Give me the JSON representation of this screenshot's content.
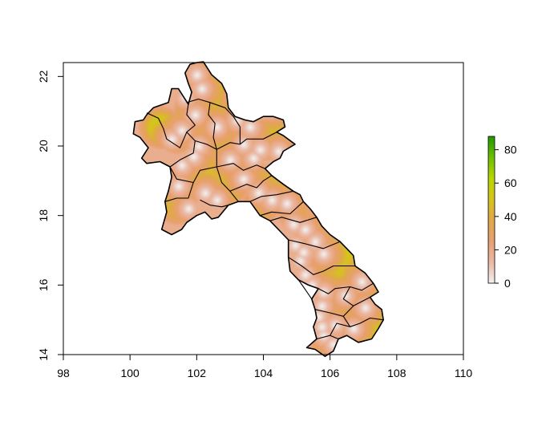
{
  "map": {
    "region": "Laos",
    "x_axis": {
      "ticks": [
        98,
        100,
        102,
        104,
        106,
        108,
        110
      ],
      "range": [
        98,
        110
      ]
    },
    "y_axis": {
      "ticks": [
        14,
        16,
        18,
        20,
        22
      ],
      "range": [
        14,
        22.4
      ]
    },
    "legend": {
      "ticks": [
        0,
        20,
        40,
        60,
        80
      ],
      "range": [
        0,
        88
      ],
      "colors": [
        "#f2f2f2",
        "#eab8a4",
        "#e8a070",
        "#e0a84a",
        "#d6c41c",
        "#b8d600",
        "#6cc000",
        "#1e9a00"
      ]
    },
    "country_border": [
      [
        102.0,
        22.4
      ],
      [
        102.2,
        22.42
      ],
      [
        102.45,
        22.05
      ],
      [
        102.75,
        21.8
      ],
      [
        102.9,
        21.5
      ],
      [
        102.95,
        21.1
      ],
      [
        103.15,
        20.85
      ],
      [
        103.45,
        20.75
      ],
      [
        103.7,
        20.7
      ],
      [
        104.0,
        20.85
      ],
      [
        104.3,
        20.85
      ],
      [
        104.6,
        20.75
      ],
      [
        104.65,
        20.55
      ],
      [
        104.4,
        20.4
      ],
      [
        104.6,
        20.3
      ],
      [
        104.95,
        20.05
      ],
      [
        104.6,
        19.85
      ],
      [
        104.5,
        19.65
      ],
      [
        104.3,
        19.55
      ],
      [
        104.05,
        19.35
      ],
      [
        104.25,
        19.15
      ],
      [
        104.6,
        18.9
      ],
      [
        104.9,
        18.7
      ],
      [
        105.1,
        18.6
      ],
      [
        105.2,
        18.4
      ],
      [
        105.4,
        18.2
      ],
      [
        105.6,
        17.95
      ],
      [
        105.75,
        17.7
      ],
      [
        106.0,
        17.45
      ],
      [
        106.3,
        17.25
      ],
      [
        106.5,
        17.05
      ],
      [
        106.7,
        16.85
      ],
      [
        106.75,
        16.55
      ],
      [
        107.05,
        16.35
      ],
      [
        107.3,
        16.05
      ],
      [
        107.45,
        15.8
      ],
      [
        107.2,
        15.65
      ],
      [
        107.35,
        15.45
      ],
      [
        107.55,
        15.3
      ],
      [
        107.6,
        15.0
      ],
      [
        107.45,
        14.75
      ],
      [
        107.25,
        14.45
      ],
      [
        106.85,
        14.35
      ],
      [
        106.5,
        14.55
      ],
      [
        106.25,
        14.45
      ],
      [
        106.1,
        14.1
      ],
      [
        105.85,
        13.95
      ],
      [
        105.55,
        14.15
      ],
      [
        105.3,
        14.2
      ],
      [
        105.6,
        14.45
      ],
      [
        105.5,
        14.8
      ],
      [
        105.6,
        15.05
      ],
      [
        105.55,
        15.3
      ],
      [
        105.45,
        15.6
      ],
      [
        105.65,
        15.9
      ],
      [
        105.35,
        16.0
      ],
      [
        105.05,
        16.15
      ],
      [
        104.8,
        16.4
      ],
      [
        104.75,
        16.8
      ],
      [
        104.75,
        17.3
      ],
      [
        104.45,
        17.6
      ],
      [
        104.2,
        17.85
      ],
      [
        103.9,
        18.0
      ],
      [
        103.6,
        18.4
      ],
      [
        103.25,
        18.4
      ],
      [
        102.95,
        18.3
      ],
      [
        102.65,
        17.95
      ],
      [
        102.45,
        17.9
      ],
      [
        102.25,
        18.1
      ],
      [
        102.0,
        18.0
      ],
      [
        101.7,
        17.8
      ],
      [
        101.55,
        17.6
      ],
      [
        101.25,
        17.45
      ],
      [
        100.95,
        17.6
      ],
      [
        101.1,
        18.1
      ],
      [
        101.05,
        18.4
      ],
      [
        101.15,
        18.7
      ],
      [
        101.25,
        19.1
      ],
      [
        101.2,
        19.4
      ],
      [
        100.9,
        19.55
      ],
      [
        100.5,
        19.5
      ],
      [
        100.35,
        19.65
      ],
      [
        100.55,
        19.95
      ],
      [
        100.3,
        20.25
      ],
      [
        100.1,
        20.35
      ],
      [
        100.15,
        20.7
      ],
      [
        100.4,
        20.75
      ],
      [
        100.5,
        20.9
      ],
      [
        100.7,
        21.1
      ],
      [
        101.15,
        21.25
      ],
      [
        101.2,
        21.45
      ],
      [
        101.25,
        21.65
      ],
      [
        101.45,
        21.65
      ],
      [
        101.75,
        21.2
      ],
      [
        101.85,
        21.55
      ],
      [
        101.75,
        21.8
      ],
      [
        101.65,
        22.1
      ],
      [
        101.8,
        22.35
      ],
      [
        102.0,
        22.4
      ]
    ],
    "province_borders": [
      [
        [
          101.7,
          21.25
        ],
        [
          102.05,
          21.35
        ],
        [
          102.4,
          21.25
        ],
        [
          102.85,
          21.1
        ]
      ],
      [
        [
          101.75,
          21.2
        ],
        [
          101.7,
          20.9
        ],
        [
          101.95,
          20.6
        ],
        [
          101.7,
          20.4
        ],
        [
          101.95,
          20.15
        ],
        [
          102.3,
          20.05
        ],
        [
          102.6,
          19.9
        ]
      ],
      [
        [
          102.4,
          21.25
        ],
        [
          102.35,
          20.9
        ],
        [
          102.55,
          20.65
        ],
        [
          102.5,
          20.25
        ],
        [
          102.6,
          19.9
        ],
        [
          103.0,
          20.1
        ],
        [
          103.3,
          20.05
        ],
        [
          103.5,
          20.2
        ],
        [
          104.0,
          20.2
        ],
        [
          104.4,
          20.4
        ]
      ],
      [
        [
          102.85,
          21.1
        ],
        [
          103.1,
          20.85
        ],
        [
          103.3,
          20.55
        ],
        [
          103.3,
          20.05
        ]
      ],
      [
        [
          100.5,
          20.95
        ],
        [
          100.85,
          20.8
        ],
        [
          101.0,
          20.5
        ],
        [
          101.1,
          20.2
        ],
        [
          101.5,
          19.95
        ],
        [
          101.7,
          20.4
        ]
      ],
      [
        [
          101.2,
          19.4
        ],
        [
          101.5,
          19.6
        ],
        [
          101.9,
          19.8
        ],
        [
          101.95,
          20.15
        ]
      ],
      [
        [
          101.2,
          19.4
        ],
        [
          101.4,
          19.05
        ],
        [
          101.9,
          18.95
        ],
        [
          102.1,
          19.3
        ],
        [
          102.6,
          19.4
        ],
        [
          102.6,
          19.9
        ]
      ],
      [
        [
          101.05,
          18.4
        ],
        [
          101.4,
          18.5
        ],
        [
          101.75,
          18.5
        ],
        [
          101.9,
          18.95
        ]
      ],
      [
        [
          102.6,
          19.4
        ],
        [
          102.75,
          18.95
        ],
        [
          103.0,
          18.7
        ],
        [
          103.25,
          18.4
        ]
      ],
      [
        [
          102.1,
          18.45
        ],
        [
          102.4,
          18.3
        ],
        [
          102.75,
          18.25
        ],
        [
          102.95,
          18.3
        ]
      ],
      [
        [
          102.6,
          19.4
        ],
        [
          103.1,
          19.5
        ],
        [
          103.4,
          19.3
        ],
        [
          103.8,
          19.45
        ],
        [
          104.05,
          19.35
        ]
      ],
      [
        [
          103.0,
          18.7
        ],
        [
          103.5,
          18.9
        ],
        [
          103.8,
          18.8
        ],
        [
          104.0,
          19.0
        ],
        [
          104.25,
          19.15
        ]
      ],
      [
        [
          103.6,
          18.4
        ],
        [
          103.95,
          18.55
        ],
        [
          104.4,
          18.6
        ],
        [
          104.9,
          18.7
        ]
      ],
      [
        [
          103.9,
          18.0
        ],
        [
          104.25,
          18.1
        ],
        [
          104.8,
          18.05
        ],
        [
          105.2,
          18.4
        ]
      ],
      [
        [
          104.2,
          17.85
        ],
        [
          104.55,
          17.95
        ],
        [
          105.1,
          17.8
        ],
        [
          105.6,
          17.95
        ]
      ],
      [
        [
          104.75,
          17.3
        ],
        [
          105.2,
          17.2
        ],
        [
          105.8,
          17.05
        ],
        [
          106.3,
          17.25
        ]
      ],
      [
        [
          104.75,
          16.8
        ],
        [
          105.15,
          16.55
        ],
        [
          105.5,
          16.3
        ],
        [
          105.8,
          16.4
        ],
        [
          106.1,
          16.55
        ],
        [
          106.75,
          16.55
        ]
      ],
      [
        [
          105.05,
          16.15
        ],
        [
          105.2,
          15.95
        ],
        [
          105.45,
          15.6
        ]
      ],
      [
        [
          105.65,
          15.9
        ],
        [
          105.95,
          15.75
        ],
        [
          106.15,
          15.9
        ],
        [
          106.6,
          15.95
        ],
        [
          106.95,
          15.85
        ],
        [
          107.3,
          16.05
        ]
      ],
      [
        [
          106.6,
          15.95
        ],
        [
          106.4,
          15.6
        ],
        [
          106.7,
          15.4
        ],
        [
          107.2,
          15.65
        ]
      ],
      [
        [
          105.55,
          15.3
        ],
        [
          106.0,
          15.2
        ],
        [
          106.4,
          15.1
        ],
        [
          106.7,
          15.4
        ]
      ],
      [
        [
          106.4,
          15.1
        ],
        [
          106.6,
          14.8
        ],
        [
          106.9,
          14.9
        ],
        [
          107.2,
          15.05
        ],
        [
          107.6,
          15.0
        ]
      ],
      [
        [
          105.6,
          14.45
        ],
        [
          106.0,
          14.55
        ],
        [
          106.25,
          14.45
        ]
      ],
      [
        [
          106.0,
          14.55
        ],
        [
          106.2,
          14.9
        ],
        [
          106.6,
          14.8
        ]
      ]
    ],
    "hotspots": [
      [
        102.35,
        21.9,
        72
      ],
      [
        102.3,
        21.35,
        60
      ],
      [
        101.95,
        21.0,
        70
      ],
      [
        100.9,
        20.55,
        66
      ],
      [
        101.4,
        20.25,
        40
      ],
      [
        102.2,
        20.75,
        55
      ],
      [
        102.95,
        20.75,
        66
      ],
      [
        103.45,
        20.4,
        48
      ],
      [
        104.05,
        20.2,
        62
      ],
      [
        104.45,
        20.3,
        48
      ],
      [
        102.7,
        20.1,
        42
      ],
      [
        102.4,
        19.2,
        66
      ],
      [
        102.85,
        18.95,
        86
      ],
      [
        101.85,
        19.05,
        70
      ],
      [
        101.4,
        18.3,
        52
      ],
      [
        103.2,
        19.3,
        42
      ],
      [
        103.8,
        19.1,
        38
      ],
      [
        104.1,
        18.9,
        50
      ],
      [
        104.45,
        18.8,
        44
      ],
      [
        104.7,
        18.5,
        50
      ],
      [
        104.95,
        18.05,
        42
      ],
      [
        105.5,
        17.55,
        50
      ],
      [
        105.8,
        17.15,
        44
      ],
      [
        106.1,
        16.8,
        46
      ],
      [
        106.35,
        16.85,
        58
      ],
      [
        106.7,
        16.65,
        40
      ],
      [
        105.7,
        16.2,
        66
      ],
      [
        106.0,
        16.25,
        80
      ],
      [
        106.55,
        16.15,
        42
      ],
      [
        107.1,
        15.9,
        44
      ],
      [
        106.85,
        15.45,
        44
      ],
      [
        106.3,
        15.4,
        40
      ],
      [
        106.95,
        14.85,
        84
      ],
      [
        107.35,
        14.8,
        70
      ],
      [
        105.85,
        14.35,
        38
      ],
      [
        104.5,
        17.0,
        24
      ],
      [
        103.9,
        18.3,
        52
      ],
      [
        102.4,
        21.7,
        58
      ],
      [
        101.55,
        20.6,
        44
      ],
      [
        103.6,
        19.9,
        40
      ]
    ],
    "coldspots": [
      [
        102.0,
        22.05
      ],
      [
        102.15,
        21.65
      ],
      [
        101.65,
        21.4
      ],
      [
        101.95,
        20.9
      ],
      [
        101.55,
        20.45
      ],
      [
        101.25,
        20.2
      ],
      [
        102.05,
        20.0
      ],
      [
        101.9,
        19.7
      ],
      [
        101.55,
        19.45
      ],
      [
        101.75,
        18.2
      ],
      [
        102.25,
        18.65
      ],
      [
        101.45,
        18.85
      ],
      [
        102.6,
        20.55
      ],
      [
        103.2,
        20.75
      ],
      [
        103.6,
        20.55
      ],
      [
        103.4,
        20.05
      ],
      [
        103.9,
        19.9
      ],
      [
        104.45,
        19.85
      ],
      [
        103.7,
        19.65
      ],
      [
        103.0,
        19.6
      ],
      [
        103.4,
        19.05
      ],
      [
        103.85,
        18.65
      ],
      [
        104.25,
        18.45
      ],
      [
        104.7,
        18.35
      ],
      [
        104.9,
        17.75
      ],
      [
        105.25,
        17.6
      ],
      [
        105.55,
        17.25
      ],
      [
        105.8,
        16.9
      ],
      [
        105.2,
        16.95
      ],
      [
        105.1,
        16.7
      ],
      [
        105.25,
        16.3
      ],
      [
        105.05,
        16.0
      ],
      [
        105.45,
        16.0
      ],
      [
        105.8,
        15.8
      ],
      [
        105.75,
        15.4
      ],
      [
        105.65,
        15.1
      ],
      [
        105.75,
        14.8
      ],
      [
        105.8,
        14.55
      ],
      [
        106.15,
        14.85
      ],
      [
        106.45,
        15.7
      ],
      [
        106.95,
        16.1
      ],
      [
        107.05,
        15.35
      ],
      [
        106.7,
        14.75
      ],
      [
        102.6,
        18.45
      ],
      [
        104.4,
        17.35
      ],
      [
        104.95,
        17.15
      ],
      [
        105.3,
        15.7
      ],
      [
        106.1,
        14.3
      ]
    ]
  }
}
